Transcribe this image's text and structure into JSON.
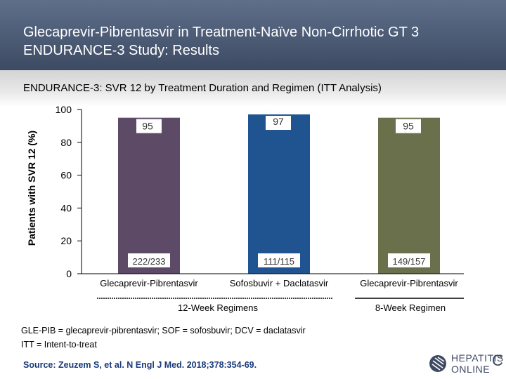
{
  "header": {
    "title_line1": "Glecaprevir-Pibrentasvir in Treatment-Naïve Non-Cirrhotic GT 3",
    "title_line2": "ENDURANCE-3 Study: Results"
  },
  "subtitle": "ENDURANCE-3: SVR 12 by Treatment Duration and Regimen (ITT Analysis)",
  "chart_data": {
    "type": "bar",
    "ylabel": "Patients with SVR 12 (%)",
    "ylim": [
      0,
      100
    ],
    "yticks": [
      0,
      20,
      40,
      60,
      80,
      100
    ],
    "grid": false,
    "categories": [
      "Glecaprevir-Pibrentasvir",
      "Sofosbuvir + Daclatasvir",
      "Glecaprevir-Pibrentasvir"
    ],
    "values": [
      95,
      97,
      95
    ],
    "value_labels": [
      "95",
      "97",
      "95"
    ],
    "counts": [
      "222/233",
      "111/115",
      "149/157"
    ],
    "colors": [
      "#5c4a66",
      "#1f5491",
      "#6a6f4c"
    ],
    "groups": [
      {
        "label": "12-Week Regimens",
        "categories": [
          0,
          1
        ]
      },
      {
        "label": "8-Week Regimen",
        "categories": [
          2
        ]
      }
    ]
  },
  "footnotes": {
    "line1": "GLE-PIB = glecaprevir-pibrentasvir; SOF = sofosbuvir; DCV = daclatasvir",
    "line2": "ITT = Intent-to-treat"
  },
  "source": "Source: Zeuzem S, et al. N Engl J Med. 2018;378:354-69.",
  "logo": {
    "line1": "HEPATITIS",
    "line2": "ONLINE",
    "letter": "C",
    "icon": "hepatitis-c-online-logo-mark"
  }
}
